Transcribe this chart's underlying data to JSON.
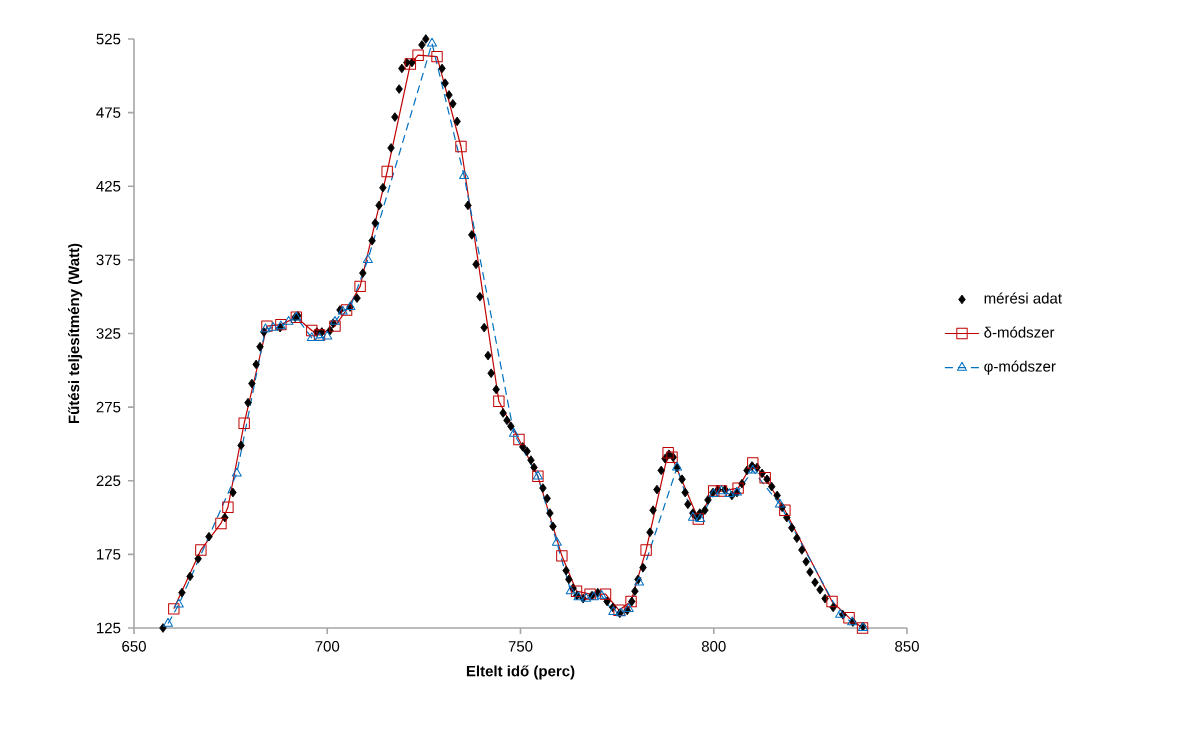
{
  "chart_data": {
    "type": "line",
    "xlabel": "Eltelt idő (perc)",
    "ylabel": "Fűtési teljesítmény (Watt)",
    "xlim": [
      650,
      850
    ],
    "xticks": [
      650,
      700,
      750,
      800,
      850
    ],
    "ylim": [
      125,
      525
    ],
    "yticks": [
      125,
      175,
      225,
      275,
      325,
      375,
      425,
      475,
      525
    ],
    "legend": "right",
    "grid": false,
    "series": [
      {
        "name": "mérési adat",
        "type": "scatter",
        "marker": "diamond",
        "color": "#000000",
        "x": [
          657.5,
          662.4,
          664.5,
          666.6,
          669.4,
          673.5,
          675.6,
          677.7,
          679.5,
          680.5,
          681.6,
          682.6,
          683.6,
          687.8,
          691.7,
          692.4,
          697.3,
          698.6,
          700.7,
          701.5,
          703.3,
          705.9,
          707.7,
          709.2,
          711.6,
          712.4,
          713.4,
          714.4,
          716.5,
          717.5,
          718.6,
          719.3,
          720.6,
          721.9,
          724.5,
          725.5,
          729.7,
          730.5,
          731.5,
          732.5,
          733.6,
          736.4,
          737.4,
          738.5,
          739.5,
          740.6,
          741.6,
          742.4,
          743.7,
          745.5,
          746.5,
          747.5,
          750.6,
          751.7,
          752.7,
          753.5,
          755.8,
          756.9,
          757.6,
          758.4,
          761.8,
          762.5,
          763.6,
          764.6,
          766.2,
          768.5,
          770,
          772.4,
          773.9,
          775.7,
          777.6,
          778.8,
          779.6,
          780.4,
          781.7,
          783.5,
          784.3,
          785.3,
          786.4,
          787.4,
          788.4,
          789.5,
          790.5,
          791.8,
          792.6,
          793.3,
          794.6,
          795.7,
          796.4,
          797.7,
          798.5,
          799.8,
          801.1,
          802.9,
          804.7,
          806,
          807.3,
          808.6,
          809.9,
          811.2,
          812.5,
          813.8,
          815,
          816.4,
          817.7,
          818.9,
          820.2,
          821.5,
          822.8,
          823.9,
          824.9,
          826.2,
          827.5,
          828.8,
          830.9,
          833.4,
          836,
          838.6
        ],
        "values": [
          125,
          149,
          160,
          172,
          187,
          200,
          217,
          249,
          278,
          291,
          304,
          316,
          326,
          329,
          336,
          337,
          326,
          326,
          327,
          332,
          341,
          343,
          349,
          366,
          388,
          400,
          412,
          424,
          451,
          472,
          491,
          505,
          509,
          509,
          521,
          525,
          505,
          495,
          487,
          481,
          469,
          412,
          392,
          372,
          350,
          329,
          310,
          298,
          287,
          271,
          266,
          262,
          248,
          245,
          239,
          234,
          220,
          213,
          203,
          194,
          164,
          158,
          152,
          147,
          145,
          147,
          149,
          143,
          139,
          135,
          137,
          143,
          150,
          158,
          166,
          190,
          205,
          219,
          232,
          240,
          243,
          241,
          234,
          226,
          217,
          209,
          203,
          200,
          203,
          205,
          212,
          217,
          219,
          219,
          215,
          217,
          223,
          232,
          235,
          234,
          230,
          226,
          221,
          215,
          207,
          200,
          193,
          186,
          178,
          170,
          163,
          156,
          151,
          145,
          139,
          134,
          129,
          126
        ]
      },
      {
        "name": "δ-módszer",
        "marker": "square",
        "line_style": "solid",
        "color": "#c00000",
        "x": [
          660.3,
          667.3,
          672.5,
          674.3,
          678.5,
          684.4,
          688,
          692,
          696,
          698,
          702,
          705,
          708.5,
          715.5,
          721.5,
          723.5,
          728.4,
          734.6,
          744.4,
          749.6,
          754.5,
          760.7,
          764.5,
          768,
          772,
          775.5,
          778.6,
          782.5,
          788.2,
          789.2,
          796,
          800,
          802,
          806.3,
          810.1,
          813.3,
          818.4,
          830.6,
          835,
          838.5
        ],
        "values": [
          138,
          178,
          196,
          207,
          264,
          330,
          331,
          336,
          327,
          324,
          330,
          341,
          357,
          435,
          508,
          514,
          513,
          452,
          279,
          253,
          228,
          174,
          150,
          148,
          148,
          137,
          143,
          178,
          244,
          241,
          199,
          218,
          218,
          220,
          237,
          227,
          205,
          143,
          132,
          125
        ]
      },
      {
        "name": "φ-módszer",
        "marker": "triangle",
        "line_style": "dashed",
        "color": "#0070c0",
        "x": [
          658.8,
          661.6,
          676.6,
          684,
          686,
          688,
          690,
          692,
          696,
          698,
          700,
          702,
          704,
          706,
          710.5,
          727.1,
          735.4,
          748.3,
          754.5,
          759.4,
          763,
          765,
          767,
          769,
          771,
          774,
          776,
          778,
          780.7,
          790.5,
          794.6,
          796.5,
          800,
          802,
          804,
          806,
          810.1,
          817.1,
          832.7,
          835.8,
          838.6
        ],
        "values": [
          128,
          141,
          230,
          328,
          329,
          330,
          333,
          336,
          322,
          322,
          323,
          333,
          340,
          343,
          375,
          522,
          432,
          257,
          228,
          183,
          150,
          146,
          145,
          146,
          147,
          136,
          135,
          138,
          156,
          234,
          200,
          199,
          216,
          218,
          216,
          217,
          232,
          209,
          134,
          129,
          125
        ]
      }
    ]
  }
}
